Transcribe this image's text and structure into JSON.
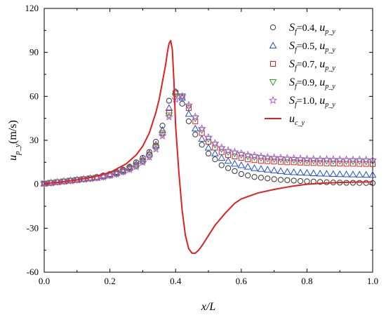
{
  "chart_data": {
    "type": "scatter",
    "xlabel": {
      "main": "x/L"
    },
    "ylabel": {
      "main": "u",
      "sub": "p_y",
      "unit": "(m/s)"
    },
    "xlim": [
      0.0,
      1.0
    ],
    "ylim": [
      -60,
      120
    ],
    "xticks": [
      0.0,
      0.2,
      0.4,
      0.6,
      0.8,
      1.0
    ],
    "xtick_labels": [
      "0.0",
      "0.2",
      "0.4",
      "0.6",
      "0.8",
      "1.0"
    ],
    "yticks": [
      -60,
      -30,
      0,
      30,
      60,
      90,
      120
    ],
    "ytick_labels": [
      "-60",
      "-30",
      "0",
      "30",
      "60",
      "90",
      "120"
    ],
    "grid": false,
    "legend_position": "top-right",
    "series": [
      {
        "legend": {
          "s": "S",
          "sub": "f",
          "val": "=0.4, ",
          "u": "u",
          "usub": "p_y"
        },
        "marker": "circle",
        "color": "#333333",
        "x": [
          0.0,
          0.02,
          0.04,
          0.06,
          0.08,
          0.1,
          0.12,
          0.14,
          0.16,
          0.18,
          0.2,
          0.22,
          0.24,
          0.26,
          0.28,
          0.3,
          0.32,
          0.34,
          0.36,
          0.38,
          0.4,
          0.42,
          0.44,
          0.46,
          0.48,
          0.5,
          0.52,
          0.54,
          0.56,
          0.58,
          0.6,
          0.62,
          0.64,
          0.66,
          0.68,
          0.7,
          0.72,
          0.74,
          0.76,
          0.78,
          0.8,
          0.82,
          0.84,
          0.86,
          0.88,
          0.9,
          0.92,
          0.94,
          0.96,
          0.98,
          1.0
        ],
        "y": [
          0.5,
          1,
          1.5,
          2,
          2.5,
          3,
          3.5,
          4,
          5,
          6,
          7,
          8.5,
          10,
          12,
          15,
          18,
          22,
          29,
          40,
          57,
          63,
          55,
          43,
          34,
          27,
          21,
          17,
          13,
          11,
          9,
          7,
          6,
          5,
          4.5,
          4,
          3.5,
          3,
          2.8,
          2.5,
          2.2,
          2,
          1.8,
          1.6,
          1.4,
          1.2,
          1.1,
          1,
          1,
          0.9,
          0.9,
          0.8
        ]
      },
      {
        "legend": {
          "s": "S",
          "sub": "f",
          "val": "=0.5, ",
          "u": "u",
          "usub": "p_y"
        },
        "marker": "triangle-up",
        "color": "#1f4fd8",
        "x": [
          0.0,
          0.02,
          0.04,
          0.06,
          0.08,
          0.1,
          0.12,
          0.14,
          0.16,
          0.18,
          0.2,
          0.22,
          0.24,
          0.26,
          0.28,
          0.3,
          0.32,
          0.34,
          0.36,
          0.38,
          0.4,
          0.42,
          0.44,
          0.46,
          0.48,
          0.5,
          0.52,
          0.54,
          0.56,
          0.58,
          0.6,
          0.62,
          0.64,
          0.66,
          0.68,
          0.7,
          0.72,
          0.74,
          0.76,
          0.78,
          0.8,
          0.82,
          0.84,
          0.86,
          0.88,
          0.9,
          0.92,
          0.94,
          0.96,
          0.98,
          1.0
        ],
        "y": [
          0.5,
          1,
          1.5,
          2,
          2.5,
          3,
          3.5,
          4,
          4.5,
          5.5,
          6.5,
          8,
          9.5,
          11.5,
          14,
          17,
          21,
          27,
          37,
          52,
          63,
          59,
          48,
          38,
          31,
          25,
          21,
          18,
          16,
          14,
          13,
          12,
          11,
          10.5,
          10,
          9.5,
          9,
          8.5,
          8.2,
          8,
          7.8,
          7.5,
          7.3,
          7.2,
          7,
          6.9,
          6.8,
          6.7,
          6.6,
          6.5,
          6.4
        ]
      },
      {
        "legend": {
          "s": "S",
          "sub": "f",
          "val": "=0.7, ",
          "u": "u",
          "usub": "p_y"
        },
        "marker": "square",
        "color": "#e02020",
        "x": [
          0.0,
          0.02,
          0.04,
          0.06,
          0.08,
          0.1,
          0.12,
          0.14,
          0.16,
          0.18,
          0.2,
          0.22,
          0.24,
          0.26,
          0.28,
          0.3,
          0.32,
          0.34,
          0.36,
          0.38,
          0.4,
          0.42,
          0.44,
          0.46,
          0.48,
          0.5,
          0.52,
          0.54,
          0.56,
          0.58,
          0.6,
          0.62,
          0.64,
          0.66,
          0.68,
          0.7,
          0.72,
          0.74,
          0.76,
          0.78,
          0.8,
          0.82,
          0.84,
          0.86,
          0.88,
          0.9,
          0.92,
          0.94,
          0.96,
          0.98,
          1.0
        ],
        "y": [
          0.5,
          1,
          1.5,
          2,
          2.5,
          3,
          3.5,
          4,
          4.5,
          5.5,
          6.5,
          7.5,
          9,
          11,
          13,
          16,
          20,
          26,
          35,
          49,
          62,
          60,
          52,
          43,
          35,
          29,
          25,
          22,
          20,
          19,
          18,
          17,
          16.5,
          16,
          15.8,
          15.5,
          15.3,
          15,
          15,
          14.8,
          14.6,
          14.5,
          14.4,
          14.3,
          14.2,
          14.1,
          14,
          14,
          13.9,
          13.9,
          13.8
        ]
      },
      {
        "legend": {
          "s": "S",
          "sub": "f",
          "val": "=0.9, ",
          "u": "u",
          "usub": "p_y"
        },
        "marker": "triangle-down",
        "color": "#2aa02a",
        "x": [
          0.0,
          0.02,
          0.04,
          0.06,
          0.08,
          0.1,
          0.12,
          0.14,
          0.16,
          0.18,
          0.2,
          0.22,
          0.24,
          0.26,
          0.28,
          0.3,
          0.32,
          0.34,
          0.36,
          0.38,
          0.4,
          0.42,
          0.44,
          0.46,
          0.48,
          0.5,
          0.52,
          0.54,
          0.56,
          0.58,
          0.6,
          0.62,
          0.64,
          0.66,
          0.68,
          0.7,
          0.72,
          0.74,
          0.76,
          0.78,
          0.8,
          0.82,
          0.84,
          0.86,
          0.88,
          0.9,
          0.92,
          0.94,
          0.96,
          0.98,
          1.0
        ],
        "y": [
          0.5,
          1,
          1.5,
          2,
          2.5,
          3,
          3.5,
          4,
          4.5,
          5,
          6,
          7,
          8.5,
          10.5,
          12.5,
          15.5,
          19,
          25,
          34,
          47,
          60,
          60,
          53,
          45,
          37,
          31,
          27,
          24,
          22,
          21,
          20,
          19,
          18.5,
          18,
          17.5,
          17.2,
          17,
          16.8,
          16.6,
          16.4,
          16.2,
          16.1,
          16,
          16,
          15.9,
          15.8,
          15.8,
          15.7,
          15.7,
          15.6,
          15.6
        ]
      },
      {
        "legend": {
          "s": "S",
          "sub": "f",
          "val": "=1.0, ",
          "u": "u",
          "usub": "p_y"
        },
        "marker": "star",
        "color": "#b45ad8",
        "x": [
          0.0,
          0.02,
          0.04,
          0.06,
          0.08,
          0.1,
          0.12,
          0.14,
          0.16,
          0.18,
          0.2,
          0.22,
          0.24,
          0.26,
          0.28,
          0.3,
          0.32,
          0.34,
          0.36,
          0.38,
          0.4,
          0.42,
          0.44,
          0.46,
          0.48,
          0.5,
          0.52,
          0.54,
          0.56,
          0.58,
          0.6,
          0.62,
          0.64,
          0.66,
          0.68,
          0.7,
          0.72,
          0.74,
          0.76,
          0.78,
          0.8,
          0.82,
          0.84,
          0.86,
          0.88,
          0.9,
          0.92,
          0.94,
          0.96,
          0.98,
          1.0
        ],
        "y": [
          0.5,
          1,
          1.5,
          2,
          2.5,
          3,
          3.5,
          4,
          4.5,
          5,
          6,
          7,
          8.5,
          10,
          12,
          15,
          18.5,
          24,
          33,
          46,
          58,
          60,
          54,
          46,
          38,
          32,
          28,
          25,
          23,
          22,
          21,
          20,
          19.5,
          19,
          18.5,
          18.2,
          18,
          17.8,
          17.6,
          17.4,
          17.2,
          17.1,
          17,
          17,
          16.9,
          16.8,
          16.8,
          16.7,
          16.7,
          16.6,
          16.6
        ]
      },
      {
        "legend": {
          "u": "u",
          "usub": "c_y"
        },
        "marker": "line",
        "color": "#e02020",
        "x": [
          0.0,
          0.05,
          0.1,
          0.15,
          0.2,
          0.25,
          0.28,
          0.3,
          0.32,
          0.34,
          0.35,
          0.36,
          0.37,
          0.375,
          0.38,
          0.385,
          0.39,
          0.395,
          0.4,
          0.41,
          0.42,
          0.43,
          0.44,
          0.45,
          0.46,
          0.47,
          0.48,
          0.5,
          0.52,
          0.55,
          0.58,
          0.6,
          0.65,
          0.7,
          0.75,
          0.8,
          0.85,
          0.9,
          0.95,
          1.0
        ],
        "y": [
          0.5,
          1.5,
          3,
          5,
          8,
          14,
          20,
          26,
          35,
          49,
          58,
          70,
          82,
          90,
          96,
          98,
          92,
          70,
          40,
          8,
          -18,
          -35,
          -44,
          -47,
          -47,
          -45,
          -42,
          -35,
          -28,
          -20,
          -13,
          -10,
          -6,
          -3.5,
          -1.5,
          0,
          0.8,
          1.2,
          1.5,
          1.6
        ]
      }
    ]
  }
}
